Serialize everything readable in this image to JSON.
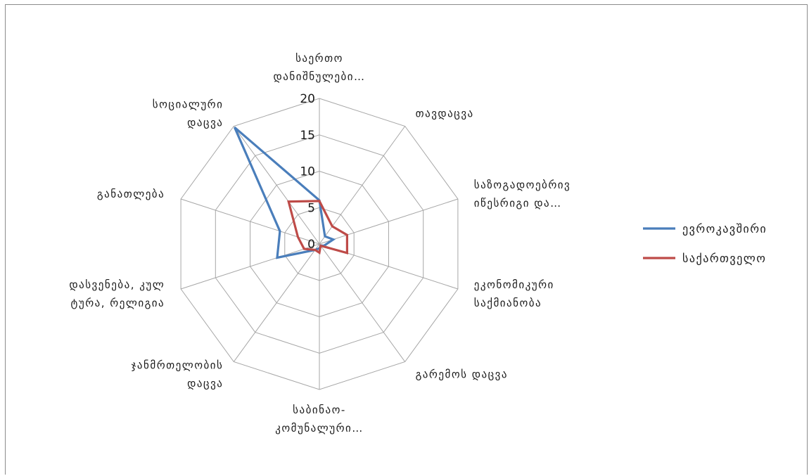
{
  "chart_data": {
    "type": "radar",
    "categories": [
      [
        "საერთო",
        "დანიშნულები…"
      ],
      [
        "თავდაცვა"
      ],
      [
        "საზოგადოებრივ",
        "იწესრიგი და…"
      ],
      [
        "ეკონომიკური",
        "საქმიანობა"
      ],
      [
        "გარემოს დაცვა"
      ],
      [
        "საბინაო-",
        "კომუნალური…"
      ],
      [
        "ჯანმრთელობის",
        "დაცვა"
      ],
      [
        "დასვენება, კულ",
        "ტურა, რელიგია"
      ],
      [
        "განათლება"
      ],
      [
        "სოციალური",
        "დაცვა"
      ]
    ],
    "ticks": [
      "0",
      "5",
      "10",
      "15",
      "20"
    ],
    "rmax": 20,
    "grid": true,
    "legend_position": "right",
    "series": [
      {
        "name": "ევროკავშირი",
        "color": "#4a7ebb",
        "values": [
          6.0,
          1.3,
          2.0,
          0.7,
          0.3,
          0.6,
          1.0,
          6.1,
          5.7,
          19.8
        ]
      },
      {
        "name": "საქართველო",
        "color": "#be4b48",
        "values": [
          5.9,
          3.0,
          4.0,
          4.0,
          0.3,
          1.2,
          1.0,
          2.2,
          3.1,
          7.2
        ]
      }
    ]
  }
}
